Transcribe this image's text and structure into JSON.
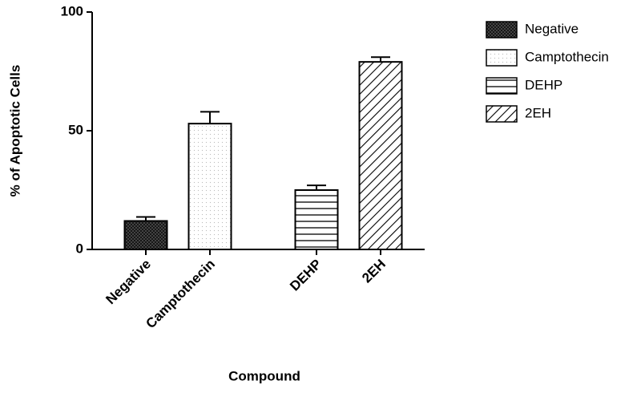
{
  "chart_data": {
    "type": "bar",
    "x_label": "Compound",
    "y_label": "% of Apoptotic Cells",
    "categories": [
      "Negative",
      "Camptothecin",
      "DEHP",
      "2EH"
    ],
    "values": [
      12,
      53,
      25,
      79
    ],
    "errors": [
      1.7,
      5,
      2,
      2
    ],
    "patterns": [
      "crosshatch",
      "dots",
      "horizontal",
      "diagonal"
    ],
    "color": "#000000",
    "ylim": [
      0,
      100
    ],
    "yticks": [
      0,
      50,
      100
    ],
    "grid": false
  }
}
